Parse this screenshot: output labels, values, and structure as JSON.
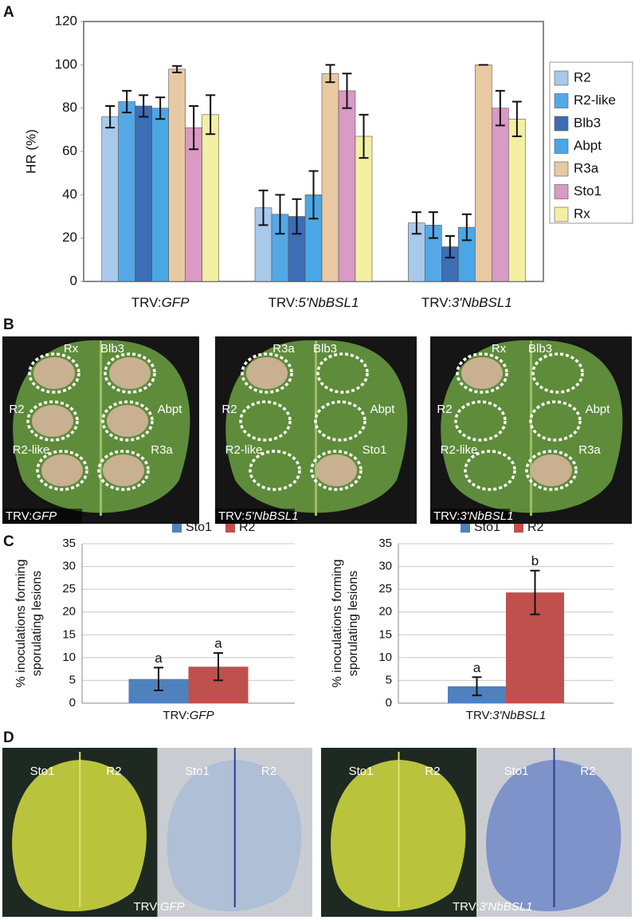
{
  "panel_labels": [
    "A",
    "B",
    "C",
    "D"
  ],
  "chart_data": [
    {
      "type": "bar",
      "ylabel": "HR (%)",
      "categories": [
        "TRV:GFP",
        "TRV:5'NbBSL1",
        "TRV:3'NbBSL1"
      ],
      "ylim": [
        0,
        120
      ],
      "yticks": [
        0,
        20,
        40,
        60,
        80,
        100,
        120
      ],
      "legend": "right",
      "frame": true,
      "grid": false,
      "series": [
        {
          "name": "R2",
          "color": "#a9c9ea",
          "values": [
            76,
            34,
            27
          ],
          "errors": [
            5,
            8,
            5
          ]
        },
        {
          "name": "R2-like",
          "color": "#55a8e6",
          "values": [
            83,
            31,
            26
          ],
          "errors": [
            5,
            9,
            6
          ]
        },
        {
          "name": "Blb3",
          "color": "#3c6db5",
          "values": [
            81,
            30,
            16
          ],
          "errors": [
            5,
            8,
            5
          ]
        },
        {
          "name": "Abpt",
          "color": "#4aa7e6",
          "values": [
            80,
            40,
            25
          ],
          "errors": [
            5,
            11,
            6
          ]
        },
        {
          "name": "R3a",
          "color": "#e9c9a2",
          "values": [
            98,
            96,
            100
          ],
          "errors": [
            1.5,
            4,
            0
          ]
        },
        {
          "name": "Sto1",
          "color": "#d99ac4",
          "values": [
            71,
            88,
            80
          ],
          "errors": [
            10,
            8,
            8
          ]
        },
        {
          "name": "Rx",
          "color": "#f3efa3",
          "values": [
            77,
            67,
            75
          ],
          "errors": [
            9,
            10,
            8
          ]
        }
      ]
    },
    {
      "type": "bar",
      "ylabel": [
        "% inoculations forming",
        "sporulating lesions"
      ],
      "categories": [
        "TRV:GFP"
      ],
      "ylim": [
        0,
        35
      ],
      "yticks": [
        0,
        5,
        10,
        15,
        20,
        25,
        30,
        35
      ],
      "legend": "top",
      "frame": false,
      "grid": true,
      "series": [
        {
          "name": "Sto1",
          "color": "#4f81bd",
          "values": [
            5.3
          ],
          "errors": [
            2.5
          ],
          "annotations": [
            "a"
          ]
        },
        {
          "name": "R2",
          "color": "#c0504d",
          "values": [
            8
          ],
          "errors": [
            3
          ],
          "annotations": [
            "a"
          ]
        }
      ]
    },
    {
      "type": "bar",
      "ylabel": [
        "% inoculations forming",
        "sporulating lesions"
      ],
      "categories": [
        "TRV:3'NbBSL1"
      ],
      "ylim": [
        0,
        35
      ],
      "yticks": [
        0,
        5,
        10,
        15,
        20,
        25,
        30,
        35
      ],
      "legend": "top",
      "frame": false,
      "grid": true,
      "series": [
        {
          "name": "Sto1",
          "color": "#4f81bd",
          "values": [
            3.7
          ],
          "errors": [
            2
          ],
          "annotations": [
            "a"
          ]
        },
        {
          "name": "R2",
          "color": "#c0504d",
          "values": [
            24.3
          ],
          "errors": [
            4.8
          ],
          "annotations": [
            "b"
          ]
        }
      ]
    }
  ],
  "photos_b": [
    {
      "caption": "TRV:GFP",
      "labels": [
        "Rx",
        "Blb3",
        "R2",
        "Abpt",
        "R2-like",
        "R3a"
      ]
    },
    {
      "caption": "TRV:5'NbBSL1",
      "labels": [
        "R3a",
        "Blb3",
        "R2",
        "Abpt",
        "R2-like",
        "Sto1"
      ]
    },
    {
      "caption": "TRV:3'NbBSL1",
      "labels": [
        "Rx",
        "Blb3",
        "R2",
        "Abpt",
        "R2-like",
        "R3a"
      ]
    }
  ],
  "photos_d": [
    {
      "caption": "TRV:GFP",
      "labels": [
        "Sto1",
        "R2",
        "Sto1",
        "R2"
      ]
    },
    {
      "caption": "TRV:3'NbBSL1",
      "labels": [
        "Sto1",
        "R2",
        "Sto1",
        "R2"
      ]
    }
  ]
}
